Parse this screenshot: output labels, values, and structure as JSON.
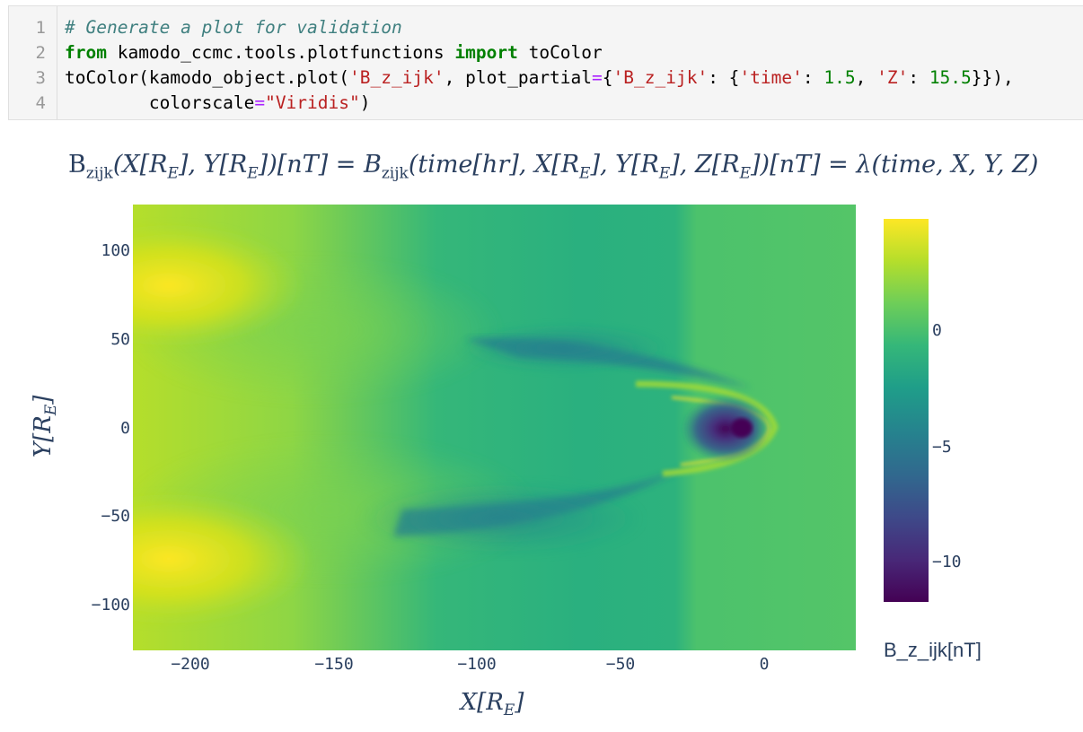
{
  "notebook_cell": {
    "line_numbers": [
      "1",
      "2",
      "3",
      "4"
    ],
    "lines": [
      [
        {
          "t": "c-comment",
          "s": "# Generate a plot for validation"
        }
      ],
      [
        {
          "t": "c-kw",
          "s": "from"
        },
        {
          "t": "",
          "s": " kamodo_ccmc.tools.plotfunctions "
        },
        {
          "t": "c-kw",
          "s": "import"
        },
        {
          "t": "",
          "s": " toColor"
        }
      ],
      [
        {
          "t": "",
          "s": "toColor(kamodo_object.plot("
        },
        {
          "t": "c-str",
          "s": "'B_z_ijk'"
        },
        {
          "t": "",
          "s": ", plot_partial"
        },
        {
          "t": "c-op",
          "s": "="
        },
        {
          "t": "",
          "s": "{"
        },
        {
          "t": "c-str",
          "s": "'B_z_ijk'"
        },
        {
          "t": "",
          "s": ": {"
        },
        {
          "t": "c-str",
          "s": "'time'"
        },
        {
          "t": "",
          "s": ": "
        },
        {
          "t": "c-num",
          "s": "1.5"
        },
        {
          "t": "",
          "s": ", "
        },
        {
          "t": "c-str",
          "s": "'Z'"
        },
        {
          "t": "",
          "s": ": "
        },
        {
          "t": "c-num",
          "s": "15.5"
        },
        {
          "t": "",
          "s": "}}),"
        }
      ],
      [
        {
          "t": "",
          "s": "        colorscale"
        },
        {
          "t": "c-op",
          "s": "="
        },
        {
          "t": "c-str",
          "s": "\"Viridis\""
        },
        {
          "t": "",
          "s": ")"
        }
      ]
    ]
  },
  "chart_data": {
    "type": "heatmap",
    "title": "Bzijk(X[RE],Y[RE])[nT] = Bzijk(time[hr],X[RE],Y[RE],Z[RE])[nT] = λ(time,X,Y,Z),t",
    "xlabel": "X[RE]",
    "ylabel": "Y[RE]",
    "xlim": [
      -220,
      32
    ],
    "ylim": [
      -125,
      125
    ],
    "x_ticks": [
      -200,
      -150,
      -100,
      -50,
      0
    ],
    "x_tick_labels": [
      "−200",
      "−150",
      "−100",
      "−50",
      "0"
    ],
    "y_ticks": [
      100,
      50,
      0,
      -50,
      -100
    ],
    "y_tick_labels": [
      "100",
      "50",
      "0",
      "−50",
      "−100"
    ],
    "colorscale": "Viridis",
    "zlim": [
      -11.5,
      4.5
    ],
    "colorbar_ticks": [
      0,
      -5,
      -10
    ],
    "colorbar_tick_labels": [
      "0",
      "−5",
      "−10"
    ],
    "colorbar_title": "B_z_ijk[nT]",
    "features": [
      {
        "x": -200,
        "y": 85,
        "value": 4.0
      },
      {
        "x": -200,
        "y": -80,
        "value": 4.3
      },
      {
        "x": -7,
        "y": 0,
        "value": -11.5
      },
      {
        "x": -85,
        "y": 35,
        "value": -2.5
      },
      {
        "x": -90,
        "y": -40,
        "value": -3.0
      },
      {
        "x": 0,
        "y": 0,
        "value": 2.5
      }
    ]
  },
  "title_parts": {
    "main": "B",
    "sub": "zijk",
    "rest1": "(X[R",
    "rest2": "], Y[R",
    "rest3": "])[nT] = B",
    "rest4": "(time[hr], X[R",
    "rest5": "], Y[R",
    "rest6": "], Z[R",
    "rest7": "])[nT] = λ(time, X, Y, Z), t",
    "sub_e": "E"
  },
  "axis_label_parts": {
    "x_main": "X[R",
    "x_sub": "E",
    "x_end": "]",
    "y_main": "Y[R",
    "y_sub": "E",
    "y_end": "]"
  }
}
